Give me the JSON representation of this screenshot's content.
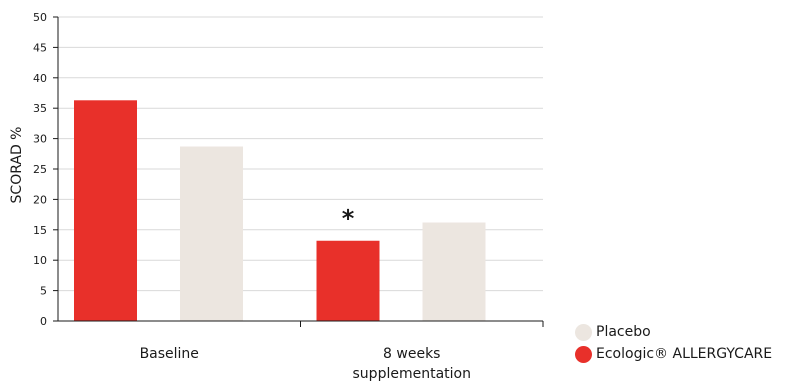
{
  "chart_data": {
    "type": "bar",
    "categories": [
      "Baseline",
      "8 weeks\nsupplementation"
    ],
    "series": [
      {
        "name": "Ecologic® ALLERGYCARE",
        "values": [
          36.3,
          13.2
        ],
        "color": "#e8302a"
      },
      {
        "name": "Placebo",
        "values": [
          28.7,
          16.2
        ],
        "color": "#ece6e0"
      }
    ],
    "ylabel": "SCORAD %",
    "xlabel": "",
    "ylim": [
      0,
      50
    ],
    "yticks": [
      0,
      5,
      10,
      15,
      20,
      25,
      30,
      35,
      40,
      45,
      50
    ],
    "grid": true,
    "legend_position": "bottom-right",
    "annotations": [
      {
        "text": "*",
        "category": "8 weeks\nsupplementation",
        "series": "Ecologic® ALLERGYCARE"
      }
    ]
  },
  "legend": {
    "items": [
      {
        "label": "Placebo",
        "color": "#ece6e0"
      },
      {
        "label": "Ecologic® ALLERGYCARE",
        "color": "#e8302a"
      }
    ]
  }
}
